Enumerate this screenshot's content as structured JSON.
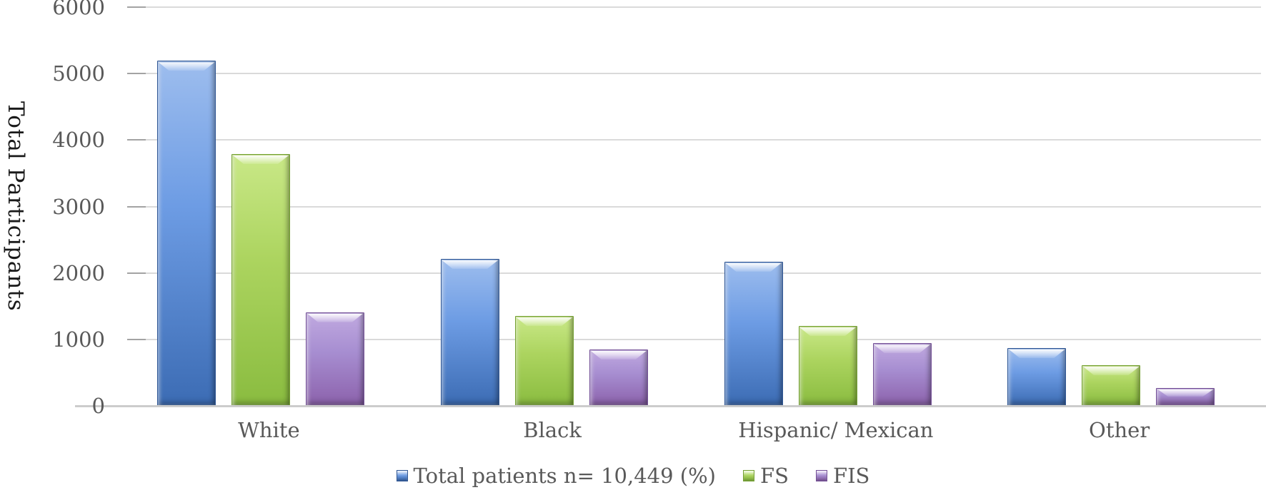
{
  "chart_data": {
    "type": "bar",
    "title": "",
    "ylabel": "Total Participants",
    "xlabel": "",
    "ylim": [
      0,
      6000
    ],
    "ytick_step": 1000,
    "yticks": [
      0,
      1000,
      2000,
      3000,
      4000,
      5000,
      6000
    ],
    "grid": true,
    "legend_position": "bottom",
    "categories": [
      "White",
      "Black",
      "Hispanic/ Mexican",
      "Other"
    ],
    "series": [
      {
        "name": "Total patients n= 10,449 (%)",
        "values": [
          5190,
          2210,
          2170,
          870
        ]
      },
      {
        "name": "FS",
        "values": [
          3790,
          1350,
          1200,
          610
        ]
      },
      {
        "name": "FIS",
        "values": [
          1410,
          850,
          940,
          270
        ]
      }
    ]
  },
  "colors": {
    "series": [
      {
        "name": "blue",
        "light": "#9DBDEE",
        "mid": "#6D9CE4",
        "dark": "#3C6CB4",
        "edge": "#2F5694"
      },
      {
        "name": "green",
        "light": "#C9E887",
        "mid": "#ACD45F",
        "dark": "#8ABC40",
        "edge": "#74A033"
      },
      {
        "name": "purple",
        "light": "#C0A9E0",
        "mid": "#A78ED1",
        "dark": "#8C62AC",
        "edge": "#734F96"
      }
    ],
    "gridline": "#DADADA",
    "tickmark": "#A3A3A3",
    "baseline": "#CCCCCC",
    "axis_text": "#595959",
    "y_title_text": "#1A1A1A"
  }
}
